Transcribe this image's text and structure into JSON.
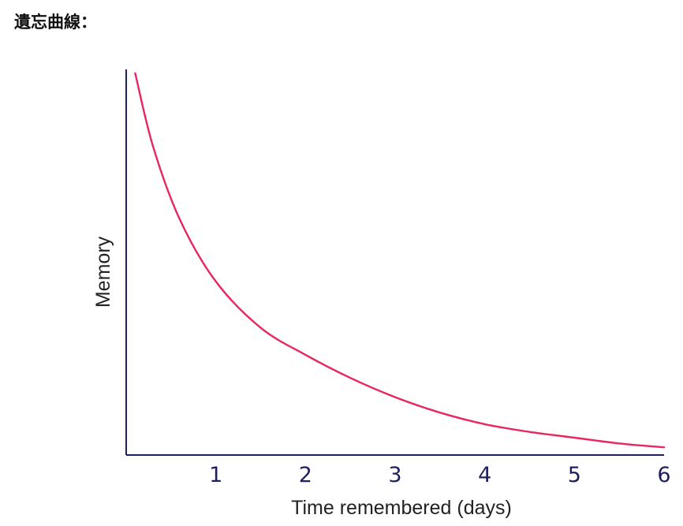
{
  "heading": "遺忘曲線：",
  "chart_data": {
    "type": "line",
    "title": "",
    "xlabel": "Time remembered (days)",
    "ylabel": "Memory",
    "xlim": [
      0,
      6
    ],
    "ylim": [
      0,
      100
    ],
    "x_ticks": [
      1,
      2,
      3,
      4,
      5,
      6
    ],
    "y_ticks": [],
    "grid": false,
    "legend": "none",
    "series_color": "#e8265f",
    "axis_color": "#1f1f5e",
    "series": [
      {
        "x": [
          0.1,
          0.3,
          0.6,
          1.0,
          1.5,
          2.0,
          2.5,
          3.0,
          3.5,
          4.0,
          4.5,
          5.0,
          5.5,
          6.0
        ],
        "y": [
          99,
          80,
          61,
          45,
          33,
          26,
          20,
          15,
          11,
          8,
          6,
          4.5,
          3,
          2
        ]
      }
    ]
  }
}
